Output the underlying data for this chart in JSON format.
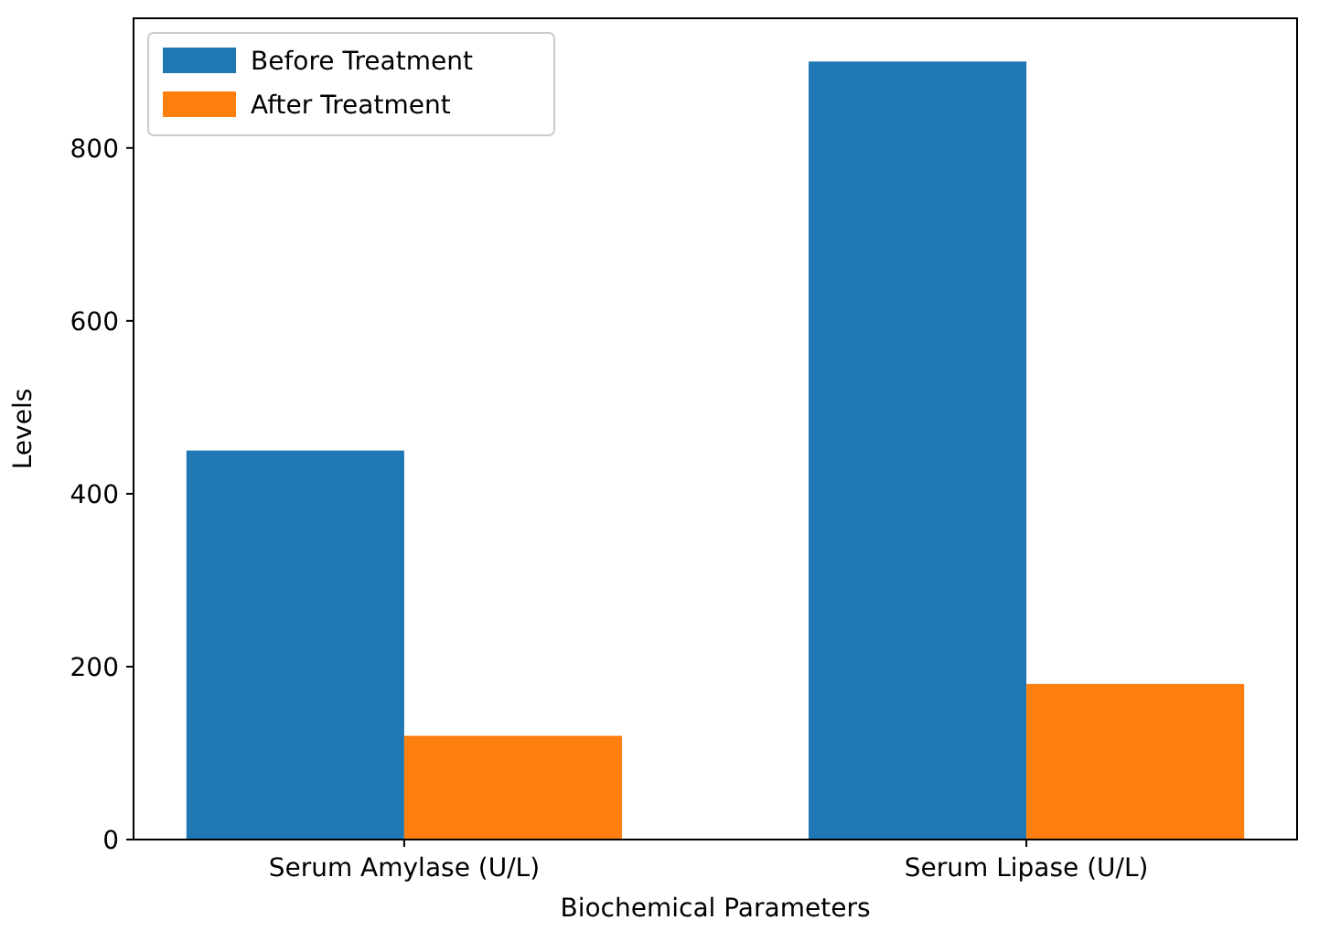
{
  "chart_data": {
    "type": "bar",
    "xlabel": "Biochemical Parameters",
    "ylabel": "Levels",
    "categories": [
      "Serum Amylase (U/L)",
      "Serum Lipase (U/L)"
    ],
    "series": [
      {
        "name": "Before Treatment",
        "color": "#1f77b4",
        "values": [
          450,
          900
        ]
      },
      {
        "name": "After Treatment",
        "color": "#ff7f0e",
        "values": [
          120,
          180
        ]
      }
    ],
    "ylim": [
      0,
      950
    ],
    "yticks": [
      0,
      200,
      400,
      600,
      800
    ],
    "legend": "top left"
  }
}
